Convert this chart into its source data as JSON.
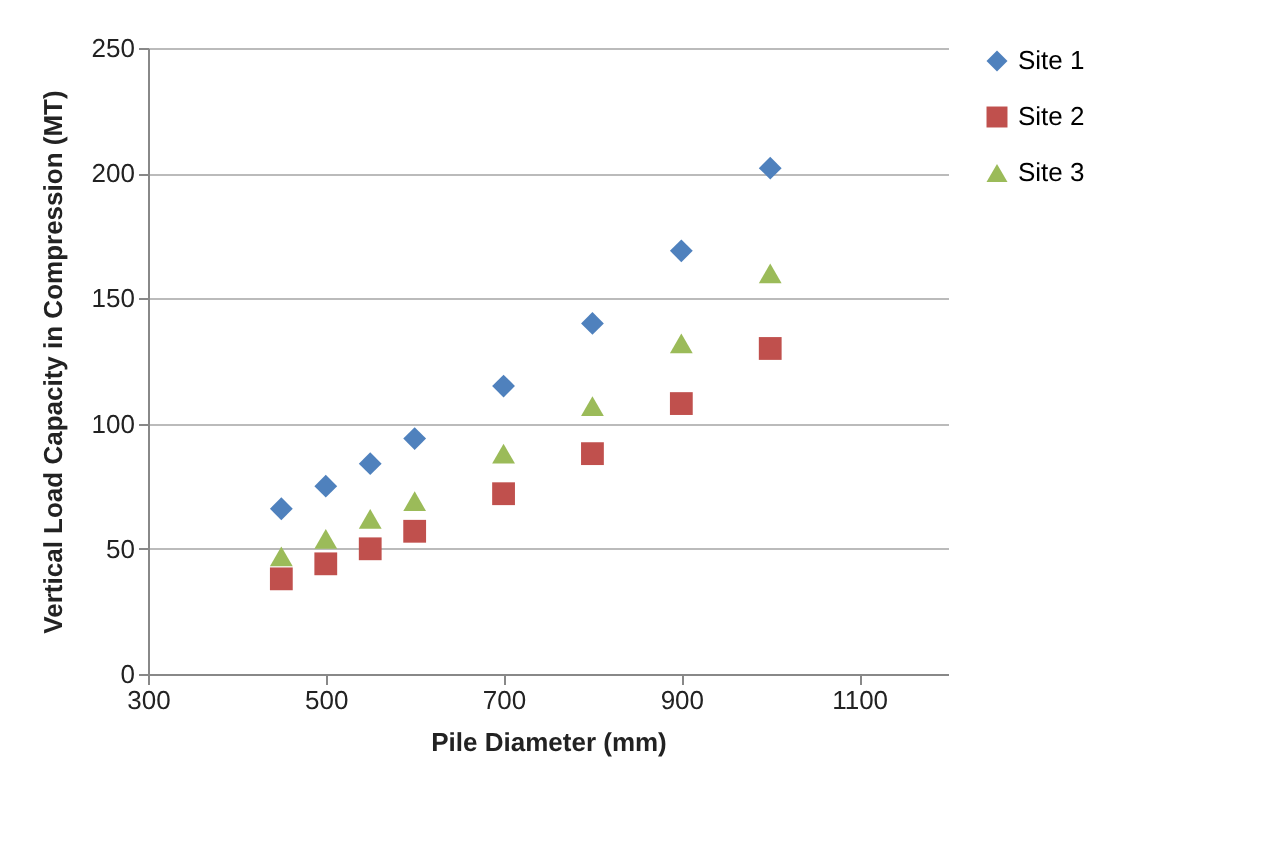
{
  "chart_data": {
    "type": "scatter",
    "xlabel": "Pile Diameter (mm)",
    "ylabel": "Vertical Load Capacity in Compression (MT)",
    "x": [
      450,
      500,
      550,
      600,
      700,
      800,
      900,
      1000
    ],
    "series": [
      {
        "name": "Site 1",
        "color": "#4f81bd",
        "marker": "diamond",
        "values": [
          66,
          75,
          84,
          94,
          115,
          140,
          169,
          202
        ]
      },
      {
        "name": "Site 2",
        "color": "#c0504d",
        "marker": "square",
        "values": [
          38,
          44,
          50,
          57,
          72,
          88,
          108,
          130
        ]
      },
      {
        "name": "Site 3",
        "color": "#9bbb59",
        "marker": "triangle",
        "values": [
          47,
          54,
          62,
          69,
          88,
          107,
          132,
          160
        ]
      }
    ],
    "xlim": [
      300,
      1200
    ],
    "xticks": [
      300,
      500,
      700,
      900,
      1100
    ],
    "ylim": [
      0,
      250
    ],
    "yticks": [
      0,
      50,
      100,
      150,
      200,
      250
    ],
    "grid": "y",
    "legend": "right"
  }
}
